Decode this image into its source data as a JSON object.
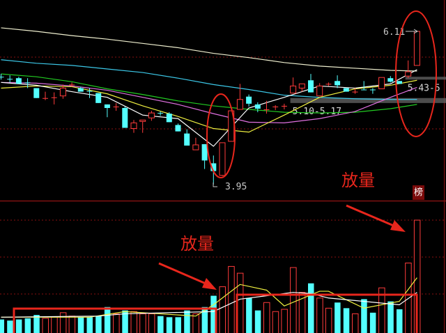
{
  "chart_data": {
    "type": "candlestick",
    "colors": {
      "up": "#ff3b3b",
      "down": "#54ffff",
      "background": "#000000",
      "grid": "#8a1010",
      "annotation": "#e8261c"
    },
    "candles": [
      [
        5.47,
        5.51,
        5.43,
        5.47,
        0
      ],
      [
        5.44,
        5.49,
        5.39,
        5.44,
        0
      ],
      [
        5.45,
        5.47,
        5.37,
        5.37,
        0
      ],
      [
        5.39,
        5.45,
        5.31,
        5.39,
        0
      ],
      [
        5.31,
        5.31,
        5.17,
        5.17,
        0
      ],
      [
        5.16,
        5.26,
        5.14,
        5.17,
        1
      ],
      [
        5.17,
        5.25,
        5.08,
        5.18,
        1
      ],
      [
        5.2,
        5.36,
        5.16,
        5.31,
        1
      ],
      [
        5.35,
        5.39,
        5.33,
        5.36,
        1
      ],
      [
        5.31,
        5.33,
        5.26,
        5.26,
        0
      ],
      [
        5.27,
        5.31,
        5.17,
        5.27,
        0
      ],
      [
        5.24,
        5.24,
        5.1,
        5.1,
        0
      ],
      [
        5.08,
        5.08,
        4.9,
        5.03,
        0
      ],
      [
        5.04,
        5.1,
        4.99,
        5.05,
        1
      ],
      [
        5.03,
        5.05,
        4.75,
        4.75,
        0
      ],
      [
        4.74,
        4.86,
        4.68,
        4.82,
        1
      ],
      [
        4.84,
        4.86,
        4.68,
        4.86,
        1
      ],
      [
        4.89,
        4.99,
        4.85,
        4.96,
        1
      ],
      [
        4.96,
        4.98,
        4.92,
        4.96,
        0
      ],
      [
        4.95,
        4.97,
        4.83,
        4.83,
        0
      ],
      [
        4.79,
        4.81,
        4.7,
        4.7,
        0
      ],
      [
        4.67,
        4.73,
        4.5,
        4.5,
        0
      ],
      [
        4.44,
        4.61,
        4.44,
        4.51,
        1
      ],
      [
        4.52,
        4.52,
        4.17,
        4.29,
        0
      ],
      [
        4.25,
        4.36,
        3.95,
        4.14,
        0
      ],
      [
        4.08,
        4.54,
        4.07,
        4.54,
        1
      ],
      [
        4.56,
        4.99,
        4.56,
        4.99,
        1
      ],
      [
        5.01,
        5.37,
        5.01,
        5.15,
        1
      ],
      [
        5.19,
        5.22,
        5.05,
        5.09,
        0
      ],
      [
        5.08,
        5.11,
        4.97,
        5.02,
        0
      ],
      [
        5.0,
        5.13,
        4.95,
        5.01,
        1
      ],
      [
        5.04,
        5.07,
        5.0,
        5.05,
        1
      ],
      [
        5.05,
        5.09,
        5.01,
        5.06,
        1
      ],
      [
        5.24,
        5.46,
        5.24,
        5.34,
        1
      ],
      [
        5.31,
        5.37,
        5.26,
        5.37,
        1
      ],
      [
        5.42,
        5.51,
        5.25,
        5.25,
        0
      ],
      [
        5.2,
        5.38,
        5.2,
        5.34,
        1
      ],
      [
        5.36,
        5.39,
        5.34,
        5.37,
        1
      ],
      [
        5.41,
        5.49,
        5.31,
        5.35,
        0
      ],
      [
        5.31,
        5.31,
        5.26,
        5.26,
        0
      ],
      [
        5.25,
        5.31,
        5.23,
        5.26,
        1
      ],
      [
        5.29,
        5.41,
        5.28,
        5.29,
        0
      ],
      [
        5.29,
        5.31,
        5.23,
        5.29,
        0
      ],
      [
        5.3,
        5.46,
        5.3,
        5.46,
        1
      ],
      [
        5.45,
        5.48,
        5.39,
        5.4,
        0
      ],
      [
        5.41,
        5.41,
        5.37,
        5.37,
        0
      ],
      [
        5.48,
        5.7,
        5.45,
        5.54,
        1
      ],
      [
        5.63,
        6.11,
        5.63,
        6.11,
        1
      ]
    ],
    "volume_relative_percent": [
      12,
      11,
      12,
      13,
      16,
      13,
      14,
      18,
      15,
      14,
      14,
      15,
      23,
      17,
      20,
      19,
      17,
      17,
      15,
      14,
      14,
      20,
      17,
      23,
      33,
      41,
      59,
      53,
      31,
      20,
      27,
      19,
      21,
      58,
      36,
      44,
      31,
      22,
      27,
      22,
      17,
      30,
      18,
      40,
      28,
      21,
      62,
      100
    ],
    "price_ma_lines": [
      {
        "color": "#f0f0d0",
        "points": [
          [
            0,
            6.16
          ],
          [
            4,
            6.11
          ],
          [
            8,
            6.05
          ],
          [
            12,
            6.0
          ],
          [
            16,
            5.94
          ],
          [
            20,
            5.88
          ],
          [
            24,
            5.8
          ],
          [
            28,
            5.74
          ],
          [
            32,
            5.67
          ],
          [
            36,
            5.62
          ],
          [
            40,
            5.59
          ],
          [
            44,
            5.56
          ],
          [
            47,
            5.55
          ]
        ]
      },
      {
        "color": "#3cc8e8",
        "points": [
          [
            0,
            5.71
          ],
          [
            4,
            5.66
          ],
          [
            8,
            5.63
          ],
          [
            12,
            5.58
          ],
          [
            16,
            5.53
          ],
          [
            20,
            5.45
          ],
          [
            24,
            5.36
          ],
          [
            28,
            5.29
          ],
          [
            32,
            5.21
          ],
          [
            36,
            5.18
          ],
          [
            40,
            5.16
          ],
          [
            44,
            5.15
          ],
          [
            47,
            5.15
          ]
        ]
      },
      {
        "color": "#22cc22",
        "points": [
          [
            0,
            5.51
          ],
          [
            4,
            5.47
          ],
          [
            8,
            5.4
          ],
          [
            12,
            5.3
          ],
          [
            16,
            5.22
          ],
          [
            20,
            5.13
          ],
          [
            24,
            5.06
          ],
          [
            28,
            5.01
          ],
          [
            32,
            4.97
          ],
          [
            36,
            4.96
          ],
          [
            40,
            4.97
          ],
          [
            44,
            5.02
          ],
          [
            47,
            5.08
          ]
        ]
      },
      {
        "color": "#e070e0",
        "points": [
          [
            0,
            5.39
          ],
          [
            4,
            5.38
          ],
          [
            8,
            5.34
          ],
          [
            12,
            5.28
          ],
          [
            16,
            5.18
          ],
          [
            20,
            5.08
          ],
          [
            24,
            4.95
          ],
          [
            28,
            4.83
          ],
          [
            32,
            4.82
          ],
          [
            36,
            4.88
          ],
          [
            40,
            4.98
          ],
          [
            44,
            5.18
          ],
          [
            47,
            5.32
          ]
        ]
      },
      {
        "color": "#f0f040",
        "points": [
          [
            0,
            5.31
          ],
          [
            4,
            5.34
          ],
          [
            8,
            5.33
          ],
          [
            12,
            5.23
          ],
          [
            16,
            5.06
          ],
          [
            20,
            4.91
          ],
          [
            24,
            4.74
          ],
          [
            28,
            4.69
          ],
          [
            32,
            4.93
          ],
          [
            36,
            5.18
          ],
          [
            40,
            5.3
          ],
          [
            44,
            5.35
          ],
          [
            47,
            5.42
          ]
        ]
      },
      {
        "color": "#ffffff",
        "points": [
          [
            0,
            5.39
          ],
          [
            4,
            5.35
          ],
          [
            8,
            5.26
          ],
          [
            12,
            5.18
          ],
          [
            16,
            4.93
          ],
          [
            20,
            4.88
          ],
          [
            24,
            4.49
          ],
          [
            28,
            5.03
          ],
          [
            32,
            5.18
          ],
          [
            36,
            5.34
          ],
          [
            40,
            5.31
          ],
          [
            44,
            5.37
          ],
          [
            47,
            5.57
          ]
        ]
      }
    ],
    "volume_ma_lines": [
      {
        "color": "#f0f040",
        "points": [
          [
            0,
            14
          ],
          [
            10,
            14
          ],
          [
            14,
            19
          ],
          [
            22,
            15
          ],
          [
            24,
            25
          ],
          [
            27,
            43
          ],
          [
            30,
            38
          ],
          [
            32,
            24
          ],
          [
            36,
            37
          ],
          [
            37,
            37
          ],
          [
            41,
            22
          ],
          [
            45,
            28
          ],
          [
            47,
            49
          ]
        ]
      },
      {
        "color": "#ffffff",
        "points": [
          [
            0,
            14
          ],
          [
            11,
            15
          ],
          [
            14,
            17
          ],
          [
            24,
            19
          ],
          [
            27,
            30
          ],
          [
            33,
            36
          ],
          [
            35,
            35
          ],
          [
            37,
            31
          ],
          [
            45,
            25
          ],
          [
            47,
            36
          ]
        ]
      }
    ],
    "zones": [
      {
        "low": 5.1,
        "high": 5.17,
        "label": "5.10-5.17",
        "from_index": 33
      },
      {
        "low": 5.43,
        "high": 5.47,
        "label": "5.43-5",
        "from_index": 46
      }
    ],
    "high_label": "6.11",
    "low_label": "3.95",
    "annotations": [
      "放量",
      "放量"
    ],
    "badge": "榜"
  }
}
